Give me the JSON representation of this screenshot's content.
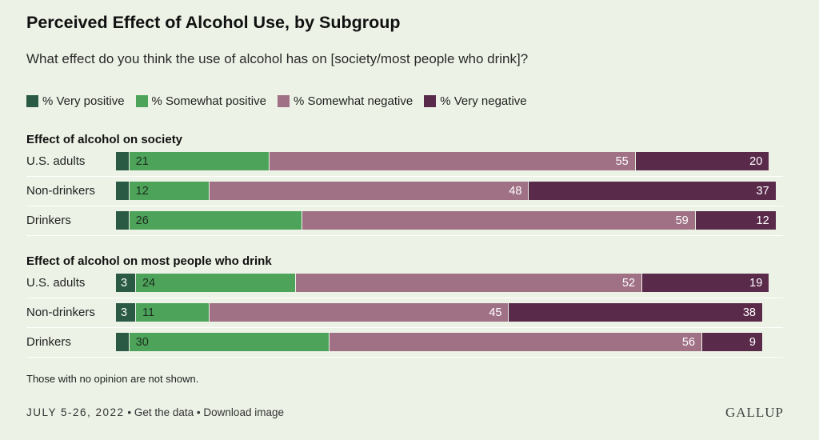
{
  "title": "Perceived Effect of Alcohol Use, by Subgroup",
  "subtitle": "What effect do you think the use of alcohol has on [society/most people who drink]?",
  "legend": [
    {
      "label": "% Very positive",
      "color": "#2a5a43"
    },
    {
      "label": "% Somewhat positive",
      "color": "#4ea35a"
    },
    {
      "label": "% Somewhat negative",
      "color": "#a07185"
    },
    {
      "label": "% Very negative",
      "color": "#5a2a4b"
    }
  ],
  "chart_data": {
    "type": "bar",
    "orientation": "horizontal",
    "stacked": true,
    "series_names": [
      "% Very positive",
      "% Somewhat positive",
      "% Somewhat negative",
      "% Very negative"
    ],
    "groups": [
      {
        "title": "Effect of alcohol on society",
        "rows": [
          {
            "label": "U.S. adults",
            "values": [
              2,
              21,
              55,
              20
            ],
            "labels": [
              "",
              "21",
              "55",
              "20"
            ]
          },
          {
            "label": "Non-drinkers",
            "values": [
              2,
              12,
              48,
              37
            ],
            "labels": [
              "",
              "12",
              "48",
              "37"
            ]
          },
          {
            "label": "Drinkers",
            "values": [
              2,
              26,
              59,
              12
            ],
            "labels": [
              "",
              "26",
              "59",
              "12"
            ]
          }
        ]
      },
      {
        "title": "Effect of alcohol on most people who drink",
        "rows": [
          {
            "label": "U.S. adults",
            "values": [
              3,
              24,
              52,
              19
            ],
            "labels": [
              "3",
              "24",
              "52",
              "19"
            ]
          },
          {
            "label": "Non-drinkers",
            "values": [
              3,
              11,
              45,
              38
            ],
            "labels": [
              "3",
              "11",
              "45",
              "38"
            ]
          },
          {
            "label": "Drinkers",
            "values": [
              2,
              30,
              56,
              9
            ],
            "labels": [
              "",
              "30",
              "56",
              "9"
            ]
          }
        ]
      }
    ]
  },
  "note": "Those with no opinion are not shown.",
  "footer": {
    "date": "JULY 5-26, 2022",
    "sep": "•",
    "get_data": "Get the data",
    "download": "Download image"
  },
  "brand": "GALLUP"
}
